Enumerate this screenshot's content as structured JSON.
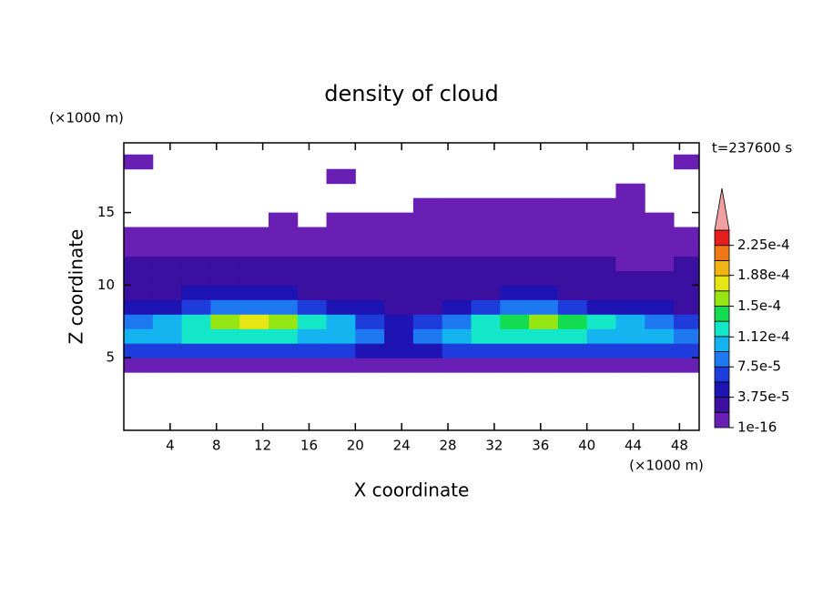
{
  "chart_data": {
    "type": "contour",
    "title": "density of cloud",
    "time_label": "t=237600 s",
    "xlabel": "X coordinate",
    "ylabel": "Z coordinate",
    "xunit": "(×1000 m)",
    "yunit": "(×1000 m)",
    "xlim": [
      0,
      49.7
    ],
    "ylim": [
      0,
      19.8
    ],
    "xticks": [
      4,
      8,
      12,
      16,
      20,
      24,
      28,
      32,
      36,
      40,
      44,
      48
    ],
    "yticks": [
      5,
      10,
      15
    ],
    "x": [
      1.25,
      3.75,
      6.25,
      8.75,
      11.25,
      13.75,
      16.25,
      18.75,
      21.25,
      23.75,
      26.25,
      28.75,
      31.25,
      33.75,
      36.25,
      38.75,
      41.25,
      43.75,
      46.25,
      48.75
    ],
    "y": [
      4.5,
      5.5,
      6.5,
      7.5,
      8.5,
      9.5,
      10.5,
      11.5,
      12.5,
      13.5,
      14.5,
      15.5,
      16.5,
      17.5,
      18.5
    ],
    "values": [
      [
        1e-05,
        1e-05,
        1e-05,
        1e-05,
        1e-05,
        1e-05,
        1e-05,
        1e-05,
        1e-05,
        1e-05,
        1e-05,
        1e-05,
        1e-05,
        1e-05,
        1e-05,
        1e-05,
        1e-05,
        1e-05,
        1e-05,
        1e-05
      ],
      [
        6e-05,
        6e-05,
        7e-05,
        7e-05,
        7e-05,
        7e-05,
        6e-05,
        6e-05,
        5e-05,
        4e-05,
        5e-05,
        6e-05,
        7e-05,
        7e-05,
        7e-05,
        7e-05,
        6e-05,
        6e-05,
        6e-05,
        6e-05
      ],
      [
        0.0001,
        0.00011,
        0.00012,
        0.00013,
        0.00013,
        0.00012,
        0.00011,
        0.0001,
        8e-05,
        5e-05,
        8e-05,
        0.0001,
        0.00012,
        0.00013,
        0.00013,
        0.00012,
        0.00011,
        0.0001,
        0.0001,
        9e-05
      ],
      [
        9e-05,
        0.00011,
        0.00013,
        0.00016,
        0.00017,
        0.00016,
        0.00013,
        0.0001,
        7e-05,
        4e-05,
        6e-05,
        9e-05,
        0.00012,
        0.00014,
        0.00016,
        0.00014,
        0.00012,
        0.0001,
        8e-05,
        6e-05
      ],
      [
        4e-05,
        5e-05,
        7e-05,
        9e-05,
        9e-05,
        8e-05,
        6e-05,
        5e-05,
        4e-05,
        3e-05,
        3e-05,
        4e-05,
        6e-05,
        8e-05,
        8e-05,
        7e-05,
        5e-05,
        4e-05,
        4e-05,
        3e-05
      ],
      [
        3e-05,
        3e-05,
        4e-05,
        4e-05,
        4e-05,
        4e-05,
        3e-05,
        3e-05,
        3e-05,
        2e-05,
        2e-05,
        3e-05,
        3e-05,
        4e-05,
        4e-05,
        3e-05,
        3e-05,
        3e-05,
        3e-05,
        3e-05
      ],
      [
        2.5e-05,
        2.5e-05,
        2.5e-05,
        2.5e-05,
        2.5e-05,
        2.5e-05,
        2.5e-05,
        2.5e-05,
        2.5e-05,
        2e-05,
        2e-05,
        2.5e-05,
        2.5e-05,
        2.5e-05,
        2.5e-05,
        2.5e-05,
        2.5e-05,
        2.5e-05,
        2.5e-05,
        2.5e-05
      ],
      [
        2e-05,
        2e-05,
        2e-05,
        2e-05,
        2e-05,
        2e-05,
        2e-05,
        2e-05,
        2e-05,
        2e-05,
        2e-05,
        2e-05,
        2e-05,
        2e-05,
        2e-05,
        2e-05,
        2e-05,
        1e-05,
        1e-05,
        2e-05
      ],
      [
        1e-05,
        1e-05,
        1e-05,
        1e-05,
        1e-05,
        1e-05,
        1e-05,
        1e-05,
        1e-05,
        1e-05,
        1e-05,
        1e-05,
        1e-05,
        1e-05,
        1e-05,
        1e-05,
        1e-05,
        1e-05,
        1e-05,
        1e-05
      ],
      [
        1e-05,
        1e-05,
        1e-05,
        1e-05,
        1e-05,
        1e-05,
        1e-05,
        1e-05,
        1e-05,
        1e-05,
        1e-05,
        1e-05,
        1e-05,
        1e-05,
        1e-05,
        1e-05,
        1e-05,
        1e-05,
        1e-05,
        1e-05
      ],
      [
        null,
        null,
        null,
        null,
        null,
        5e-06,
        null,
        5e-06,
        5e-06,
        5e-06,
        5e-06,
        5e-06,
        5e-06,
        5e-06,
        5e-06,
        5e-06,
        5e-06,
        5e-06,
        5e-06,
        null
      ],
      [
        null,
        null,
        null,
        null,
        null,
        null,
        null,
        null,
        null,
        null,
        5e-06,
        5e-06,
        5e-06,
        5e-06,
        5e-06,
        5e-06,
        5e-06,
        5e-06,
        null,
        null
      ],
      [
        null,
        null,
        null,
        null,
        null,
        null,
        null,
        null,
        null,
        null,
        null,
        null,
        null,
        null,
        null,
        null,
        null,
        5e-06,
        null,
        null
      ],
      [
        null,
        null,
        null,
        null,
        null,
        null,
        null,
        5e-06,
        null,
        null,
        null,
        null,
        null,
        null,
        null,
        null,
        null,
        null,
        null,
        null
      ],
      [
        5e-06,
        null,
        null,
        null,
        null,
        null,
        null,
        null,
        null,
        null,
        null,
        null,
        null,
        null,
        null,
        null,
        null,
        null,
        null,
        5e-06
      ]
    ],
    "levels": [
      1e-16,
      1.875e-05,
      3.75e-05,
      5.625e-05,
      7.5e-05,
      9.375e-05,
      0.0001125,
      0.00013125,
      0.00015,
      0.00016875,
      0.0001875,
      0.00020625,
      0.000225,
      0.00024375
    ],
    "colors": [
      "#6a1fb4",
      "#3b0fa0",
      "#1e14b4",
      "#1e3cdc",
      "#1e78f0",
      "#14b4f0",
      "#14e6c8",
      "#14dc50",
      "#96e614",
      "#e6e614",
      "#f0b414",
      "#f07814",
      "#e61e1e"
    ],
    "extend_color": "#f0a0a0",
    "colorbar_ticks": [
      1e-16,
      {
        "value": 3.75e-05,
        "label": "3.75e-5"
      },
      {
        "value": 7.5e-05,
        "label": "7.5e-5"
      },
      {
        "value": 0.000112,
        "label": "1.12e-4"
      },
      {
        "value": 0.00015,
        "label": "1.5e-4"
      },
      {
        "value": 0.000188,
        "label": "1.88e-4"
      },
      {
        "value": 0.000225,
        "label": "2.25e-4"
      }
    ]
  }
}
